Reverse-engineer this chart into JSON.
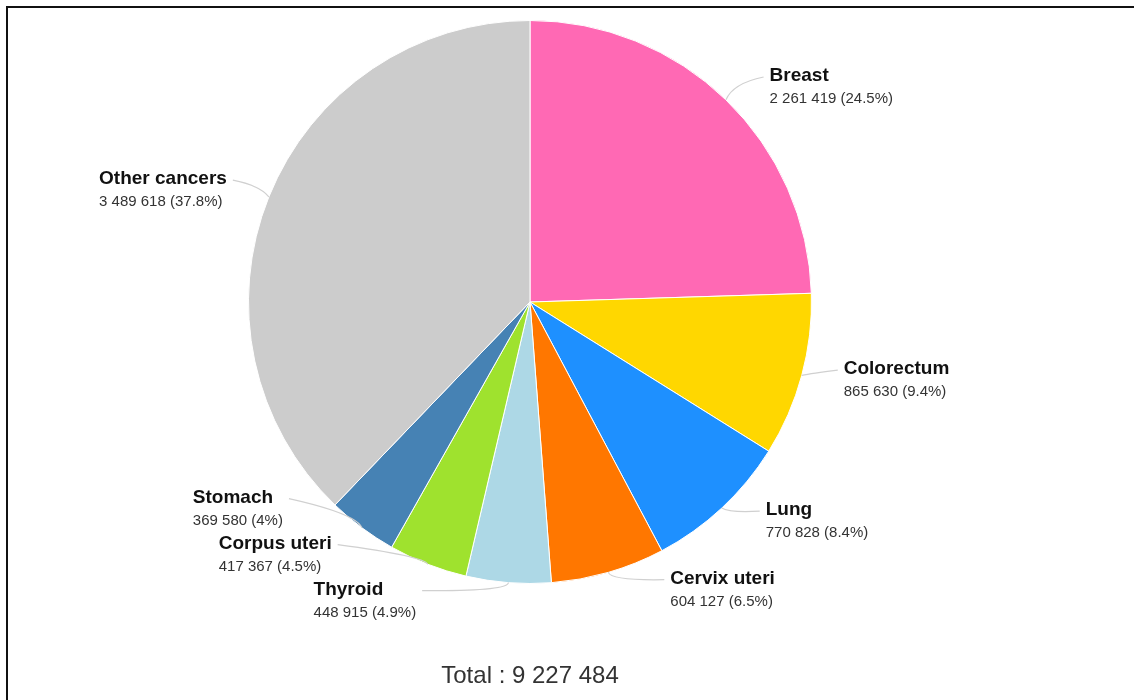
{
  "chart_data": {
    "type": "pie",
    "categories": [
      "Breast",
      "Colorectum",
      "Lung",
      "Cervix uteri",
      "Thyroid",
      "Corpus uteri",
      "Stomach",
      "Other cancers"
    ],
    "values": [
      2261419,
      865630,
      770828,
      604127,
      448915,
      417367,
      369580,
      3489618
    ],
    "colors": [
      "#ff69b4",
      "#ffd700",
      "#1e90ff",
      "#ff7700",
      "#add8e6",
      "#9fe22e",
      "#4682b4",
      "#cccccc"
    ],
    "value_labels": [
      "2 261 419 (24.5%)",
      "865 630 (9.4%)",
      "770 828 (8.4%)",
      "604 127 (6.5%)",
      "448 915 (4.9%)",
      "417 367 (4.5%)",
      "369 580 (4%)",
      "3 489 618 (37.8%)"
    ],
    "annotations": [
      "Total : 9 227 484"
    ],
    "legend": false
  }
}
